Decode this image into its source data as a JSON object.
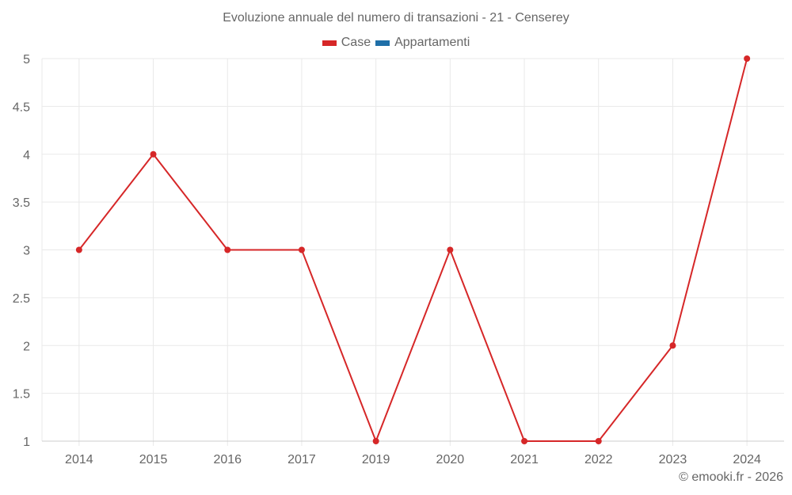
{
  "title": "Evoluzione annuale del numero di transazioni - 21 - Censerey",
  "legend": [
    {
      "label": "Case",
      "color": "#d62728"
    },
    {
      "label": "Appartamenti",
      "color": "#1f6fa8"
    }
  ],
  "credit": "© emooki.fr - 2026",
  "colors": {
    "grid": "#e9e9e9",
    "axis": "#cccccc",
    "text": "#666666",
    "line": "#d62728"
  },
  "chart_data": {
    "type": "line",
    "title": "Evoluzione annuale del numero di transazioni - 21 - Censerey",
    "xlabel": "",
    "ylabel": "",
    "categories": [
      "2014",
      "2015",
      "2016",
      "2017",
      "2019",
      "2020",
      "2021",
      "2022",
      "2023",
      "2024"
    ],
    "series": [
      {
        "name": "Case",
        "color": "#d62728",
        "values": [
          3,
          4,
          3,
          3,
          1,
          3,
          1,
          1,
          2,
          5
        ]
      },
      {
        "name": "Appartamenti",
        "color": "#1f6fa8",
        "values": []
      }
    ],
    "yticks": [
      "1",
      "1.5",
      "2",
      "2.5",
      "3",
      "3.5",
      "4",
      "4.5",
      "5"
    ],
    "ylim": [
      1,
      5
    ],
    "grid": true,
    "legend_position": "top"
  }
}
